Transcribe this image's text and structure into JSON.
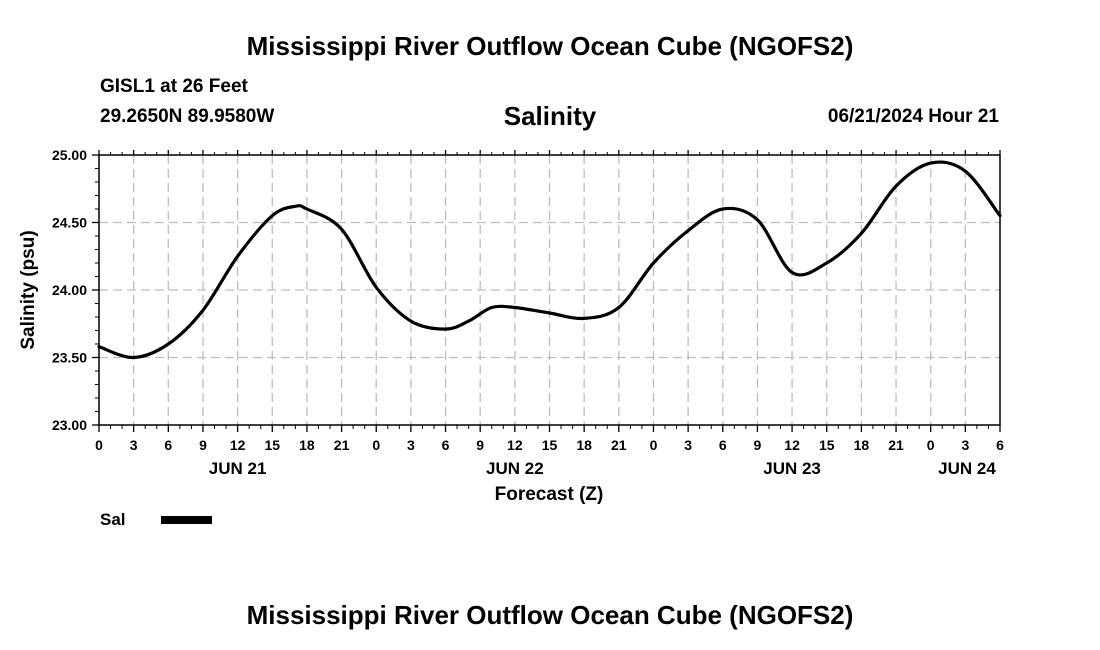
{
  "header": {
    "title": "Mississippi River Outflow Ocean Cube (NGOFS2)",
    "station": "GISL1 at 26 Feet",
    "coords": "29.2650N  89.9580W",
    "date": "06/21/2024 Hour 21"
  },
  "legend": {
    "label": "Sal",
    "color": "#000000"
  },
  "footer": {
    "title": "Mississippi River Outflow Ocean Cube (NGOFS2)"
  },
  "chart_data": {
    "type": "line",
    "title": "Salinity",
    "xlabel": "Forecast (Z)",
    "ylabel": "Salinity (psu)",
    "ylim": [
      23.0,
      25.0
    ],
    "xlim": [
      0,
      78
    ],
    "grid": true,
    "legend_position": "bottom-left",
    "y_ticks": [
      "23.00",
      "23.50",
      "24.00",
      "24.50",
      "25.00"
    ],
    "x_tick_labels": [
      "0",
      "3",
      "6",
      "9",
      "12",
      "15",
      "18",
      "21",
      "0",
      "3",
      "6",
      "9",
      "12",
      "15",
      "18",
      "21",
      "0",
      "3",
      "6",
      "9",
      "12",
      "15",
      "18",
      "21",
      "0",
      "3",
      "6"
    ],
    "day_labels": [
      {
        "label": "JUN 21",
        "hour": 12
      },
      {
        "label": "JUN 22",
        "hour": 36
      },
      {
        "label": "JUN 23",
        "hour": 60
      },
      {
        "label": "JUN 24",
        "hour": 78
      }
    ],
    "series": [
      {
        "name": "Sal",
        "color": "#000000",
        "x": [
          0,
          3,
          6,
          9,
          12,
          15,
          17,
          18,
          21,
          24,
          27,
          30,
          32,
          34,
          36,
          39,
          42,
          45,
          48,
          51,
          54,
          57,
          60,
          63,
          66,
          69,
          72,
          75,
          78
        ],
        "y": [
          23.58,
          23.5,
          23.6,
          23.85,
          24.25,
          24.55,
          24.62,
          24.6,
          24.45,
          24.02,
          23.77,
          23.71,
          23.77,
          23.87,
          23.87,
          23.83,
          23.79,
          23.87,
          24.2,
          24.44,
          24.6,
          24.52,
          24.13,
          24.2,
          24.42,
          24.77,
          24.94,
          24.88,
          24.55
        ]
      }
    ]
  }
}
